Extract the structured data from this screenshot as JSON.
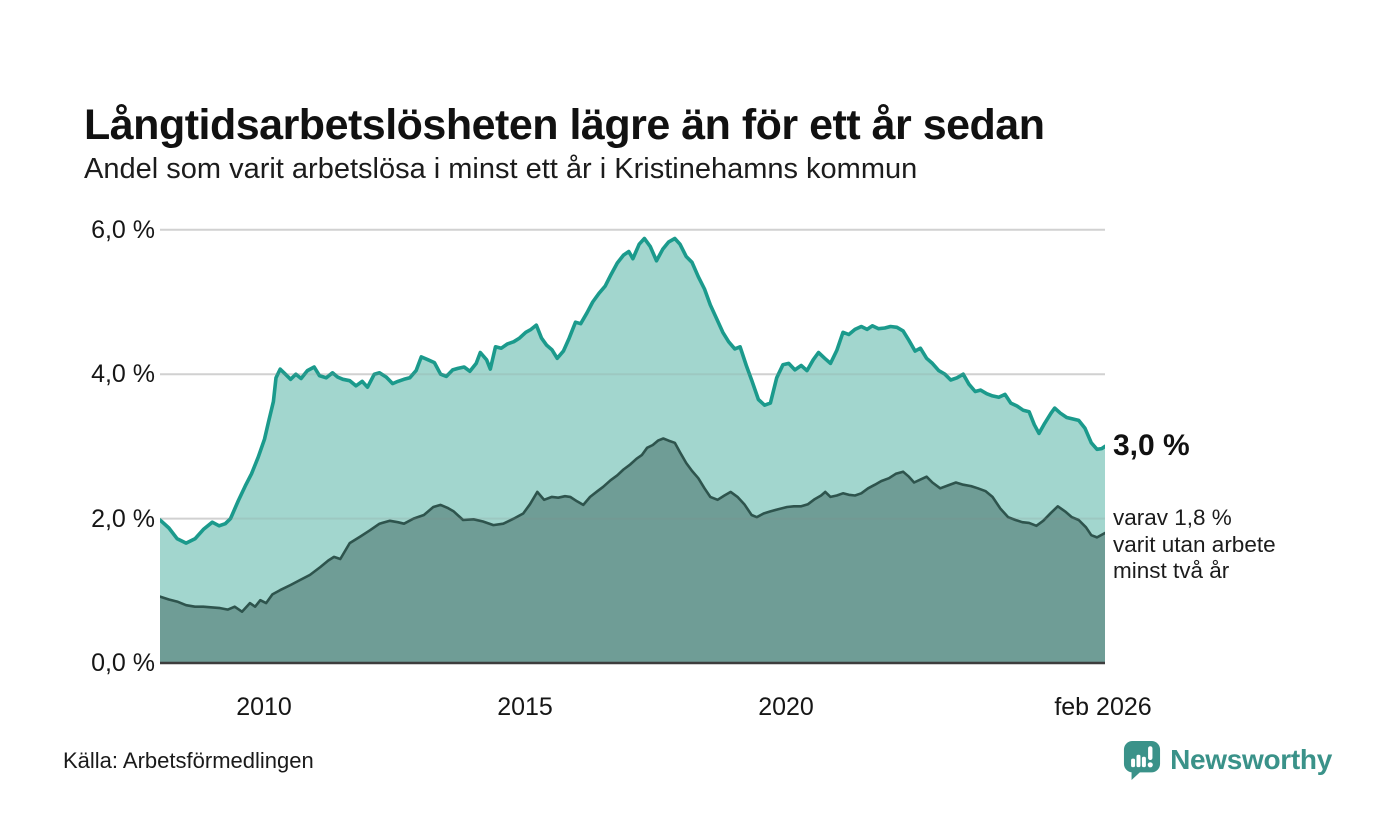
{
  "header": {
    "title": "Långtidsarbetslösheten lägre än för ett år sedan",
    "subtitle": "Andel som varit arbetslösa i minst ett år i Kristinehamns kommun"
  },
  "chart_data": {
    "type": "area",
    "title": "Långtidsarbetslösheten lägre än för ett år sedan",
    "subtitle": "Andel som varit arbetslösa i minst ett år i Kristinehamns kommun",
    "x_range": [
      2008.0,
      2026.083
    ],
    "ylim": [
      0,
      6.2
    ],
    "grid": true,
    "legend_position": "none",
    "y_tick_labels": [
      "6,0 %",
      "4,0 %",
      "2,0 %",
      "0,0 %"
    ],
    "gridline_values": [
      2,
      4,
      6
    ],
    "x_tick_labels": [
      "2010",
      "2015",
      "2020",
      "feb 2026"
    ],
    "x_tick_years": [
      2010,
      2015,
      2020,
      2026.083
    ],
    "colors": {
      "grid": "#e2e2e2",
      "baseline": "#3d3d3d",
      "background": "#ffffff"
    },
    "series": [
      {
        "name": "Arbetslösa minst ett år",
        "color": "#1b9a8c",
        "fill": "#a2d6ce",
        "stroke_width": 3.6,
        "latest_value": 3.0,
        "points": [
          [
            2008.0,
            1.98
          ],
          [
            2008.17,
            1.87
          ],
          [
            2008.33,
            1.72
          ],
          [
            2008.5,
            1.66
          ],
          [
            2008.67,
            1.72
          ],
          [
            2008.83,
            1.85
          ],
          [
            2009.0,
            1.95
          ],
          [
            2009.13,
            1.9
          ],
          [
            2009.25,
            1.93
          ],
          [
            2009.35,
            2.0
          ],
          [
            2009.5,
            2.25
          ],
          [
            2009.63,
            2.45
          ],
          [
            2009.75,
            2.62
          ],
          [
            2009.88,
            2.85
          ],
          [
            2010.0,
            3.1
          ],
          [
            2010.08,
            3.35
          ],
          [
            2010.17,
            3.62
          ],
          [
            2010.22,
            3.95
          ],
          [
            2010.3,
            4.07
          ],
          [
            2010.4,
            4.0
          ],
          [
            2010.5,
            3.93
          ],
          [
            2010.6,
            4.0
          ],
          [
            2010.7,
            3.94
          ],
          [
            2010.82,
            4.05
          ],
          [
            2010.95,
            4.1
          ],
          [
            2011.05,
            3.98
          ],
          [
            2011.18,
            3.95
          ],
          [
            2011.3,
            4.02
          ],
          [
            2011.4,
            3.96
          ],
          [
            2011.5,
            3.93
          ],
          [
            2011.63,
            3.91
          ],
          [
            2011.75,
            3.84
          ],
          [
            2011.87,
            3.9
          ],
          [
            2011.97,
            3.82
          ],
          [
            2012.1,
            4.0
          ],
          [
            2012.2,
            4.02
          ],
          [
            2012.33,
            3.96
          ],
          [
            2012.45,
            3.87
          ],
          [
            2012.55,
            3.9
          ],
          [
            2012.67,
            3.93
          ],
          [
            2012.78,
            3.95
          ],
          [
            2012.9,
            4.05
          ],
          [
            2013.0,
            4.24
          ],
          [
            2013.13,
            4.2
          ],
          [
            2013.25,
            4.16
          ],
          [
            2013.37,
            4.0
          ],
          [
            2013.48,
            3.97
          ],
          [
            2013.6,
            4.06
          ],
          [
            2013.7,
            4.08
          ],
          [
            2013.82,
            4.1
          ],
          [
            2013.93,
            4.04
          ],
          [
            2014.05,
            4.15
          ],
          [
            2014.13,
            4.3
          ],
          [
            2014.25,
            4.2
          ],
          [
            2014.32,
            4.07
          ],
          [
            2014.42,
            4.38
          ],
          [
            2014.53,
            4.36
          ],
          [
            2014.65,
            4.42
          ],
          [
            2014.77,
            4.45
          ],
          [
            2014.88,
            4.5
          ],
          [
            2015.0,
            4.58
          ],
          [
            2015.1,
            4.62
          ],
          [
            2015.2,
            4.68
          ],
          [
            2015.3,
            4.5
          ],
          [
            2015.4,
            4.4
          ],
          [
            2015.5,
            4.34
          ],
          [
            2015.6,
            4.22
          ],
          [
            2015.72,
            4.32
          ],
          [
            2015.83,
            4.5
          ],
          [
            2015.95,
            4.72
          ],
          [
            2016.05,
            4.7
          ],
          [
            2016.17,
            4.85
          ],
          [
            2016.28,
            5.0
          ],
          [
            2016.4,
            5.12
          ],
          [
            2016.52,
            5.22
          ],
          [
            2016.63,
            5.38
          ],
          [
            2016.75,
            5.54
          ],
          [
            2016.87,
            5.65
          ],
          [
            2016.97,
            5.7
          ],
          [
            2017.05,
            5.6
          ],
          [
            2017.17,
            5.8
          ],
          [
            2017.27,
            5.88
          ],
          [
            2017.38,
            5.77
          ],
          [
            2017.5,
            5.57
          ],
          [
            2017.62,
            5.73
          ],
          [
            2017.73,
            5.83
          ],
          [
            2017.85,
            5.88
          ],
          [
            2017.95,
            5.8
          ],
          [
            2018.07,
            5.63
          ],
          [
            2018.18,
            5.55
          ],
          [
            2018.3,
            5.35
          ],
          [
            2018.42,
            5.18
          ],
          [
            2018.53,
            4.96
          ],
          [
            2018.65,
            4.77
          ],
          [
            2018.77,
            4.58
          ],
          [
            2018.88,
            4.45
          ],
          [
            2019.0,
            4.35
          ],
          [
            2019.1,
            4.38
          ],
          [
            2019.22,
            4.12
          ],
          [
            2019.33,
            3.9
          ],
          [
            2019.45,
            3.65
          ],
          [
            2019.57,
            3.57
          ],
          [
            2019.68,
            3.6
          ],
          [
            2019.8,
            3.95
          ],
          [
            2019.92,
            4.13
          ],
          [
            2020.03,
            4.15
          ],
          [
            2020.15,
            4.06
          ],
          [
            2020.27,
            4.12
          ],
          [
            2020.38,
            4.05
          ],
          [
            2020.5,
            4.2
          ],
          [
            2020.6,
            4.3
          ],
          [
            2020.72,
            4.22
          ],
          [
            2020.83,
            4.15
          ],
          [
            2020.95,
            4.33
          ],
          [
            2021.07,
            4.58
          ],
          [
            2021.18,
            4.55
          ],
          [
            2021.3,
            4.62
          ],
          [
            2021.42,
            4.66
          ],
          [
            2021.53,
            4.62
          ],
          [
            2021.63,
            4.67
          ],
          [
            2021.75,
            4.63
          ],
          [
            2021.87,
            4.64
          ],
          [
            2021.98,
            4.66
          ],
          [
            2022.1,
            4.65
          ],
          [
            2022.22,
            4.6
          ],
          [
            2022.33,
            4.47
          ],
          [
            2022.45,
            4.32
          ],
          [
            2022.55,
            4.36
          ],
          [
            2022.67,
            4.22
          ],
          [
            2022.78,
            4.15
          ],
          [
            2022.9,
            4.05
          ],
          [
            2023.02,
            4.0
          ],
          [
            2023.13,
            3.92
          ],
          [
            2023.25,
            3.95
          ],
          [
            2023.37,
            4.0
          ],
          [
            2023.48,
            3.86
          ],
          [
            2023.6,
            3.76
          ],
          [
            2023.7,
            3.78
          ],
          [
            2023.82,
            3.73
          ],
          [
            2023.93,
            3.7
          ],
          [
            2024.05,
            3.68
          ],
          [
            2024.17,
            3.72
          ],
          [
            2024.28,
            3.6
          ],
          [
            2024.4,
            3.56
          ],
          [
            2024.52,
            3.5
          ],
          [
            2024.63,
            3.48
          ],
          [
            2024.73,
            3.3
          ],
          [
            2024.82,
            3.18
          ],
          [
            2024.93,
            3.32
          ],
          [
            2025.05,
            3.46
          ],
          [
            2025.12,
            3.53
          ],
          [
            2025.23,
            3.46
          ],
          [
            2025.35,
            3.4
          ],
          [
            2025.47,
            3.38
          ],
          [
            2025.58,
            3.36
          ],
          [
            2025.7,
            3.25
          ],
          [
            2025.82,
            3.05
          ],
          [
            2025.93,
            2.96
          ],
          [
            2026.02,
            2.97
          ],
          [
            2026.083,
            3.0
          ]
        ]
      },
      {
        "name": "Varav arbetslösa minst två år",
        "color": "#2e544d",
        "fill": "#6f9d96",
        "stroke_width": 2.6,
        "latest_value": 1.8,
        "points": [
          [
            2008.0,
            0.92
          ],
          [
            2008.17,
            0.88
          ],
          [
            2008.33,
            0.85
          ],
          [
            2008.5,
            0.8
          ],
          [
            2008.67,
            0.78
          ],
          [
            2008.83,
            0.78
          ],
          [
            2009.0,
            0.77
          ],
          [
            2009.15,
            0.76
          ],
          [
            2009.3,
            0.74
          ],
          [
            2009.43,
            0.78
          ],
          [
            2009.57,
            0.71
          ],
          [
            2009.72,
            0.83
          ],
          [
            2009.82,
            0.78
          ],
          [
            2009.92,
            0.87
          ],
          [
            2010.03,
            0.83
          ],
          [
            2010.15,
            0.95
          ],
          [
            2010.3,
            1.01
          ],
          [
            2010.5,
            1.08
          ],
          [
            2010.68,
            1.15
          ],
          [
            2010.87,
            1.22
          ],
          [
            2011.07,
            1.33
          ],
          [
            2011.22,
            1.42
          ],
          [
            2011.33,
            1.47
          ],
          [
            2011.45,
            1.44
          ],
          [
            2011.63,
            1.66
          ],
          [
            2011.83,
            1.75
          ],
          [
            2012.02,
            1.84
          ],
          [
            2012.2,
            1.93
          ],
          [
            2012.4,
            1.97
          ],
          [
            2012.55,
            1.95
          ],
          [
            2012.67,
            1.93
          ],
          [
            2012.85,
            2.0
          ],
          [
            2013.05,
            2.05
          ],
          [
            2013.23,
            2.16
          ],
          [
            2013.37,
            2.19
          ],
          [
            2013.5,
            2.15
          ],
          [
            2013.62,
            2.1
          ],
          [
            2013.8,
            1.98
          ],
          [
            2014.0,
            1.99
          ],
          [
            2014.18,
            1.96
          ],
          [
            2014.38,
            1.91
          ],
          [
            2014.57,
            1.93
          ],
          [
            2014.77,
            2.0
          ],
          [
            2014.95,
            2.07
          ],
          [
            2015.08,
            2.2
          ],
          [
            2015.22,
            2.37
          ],
          [
            2015.35,
            2.26
          ],
          [
            2015.5,
            2.3
          ],
          [
            2015.62,
            2.29
          ],
          [
            2015.75,
            2.31
          ],
          [
            2015.85,
            2.3
          ],
          [
            2015.98,
            2.24
          ],
          [
            2016.1,
            2.19
          ],
          [
            2016.23,
            2.3
          ],
          [
            2016.37,
            2.38
          ],
          [
            2016.48,
            2.44
          ],
          [
            2016.62,
            2.53
          ],
          [
            2016.75,
            2.6
          ],
          [
            2016.87,
            2.68
          ],
          [
            2017.0,
            2.75
          ],
          [
            2017.12,
            2.83
          ],
          [
            2017.22,
            2.88
          ],
          [
            2017.32,
            2.98
          ],
          [
            2017.43,
            3.02
          ],
          [
            2017.53,
            3.08
          ],
          [
            2017.63,
            3.11
          ],
          [
            2017.73,
            3.08
          ],
          [
            2017.85,
            3.05
          ],
          [
            2017.95,
            2.92
          ],
          [
            2018.07,
            2.77
          ],
          [
            2018.18,
            2.66
          ],
          [
            2018.3,
            2.56
          ],
          [
            2018.42,
            2.42
          ],
          [
            2018.53,
            2.3
          ],
          [
            2018.67,
            2.26
          ],
          [
            2018.8,
            2.32
          ],
          [
            2018.92,
            2.37
          ],
          [
            2019.05,
            2.3
          ],
          [
            2019.18,
            2.2
          ],
          [
            2019.32,
            2.05
          ],
          [
            2019.42,
            2.02
          ],
          [
            2019.55,
            2.07
          ],
          [
            2019.68,
            2.1
          ],
          [
            2019.83,
            2.13
          ],
          [
            2020.0,
            2.16
          ],
          [
            2020.13,
            2.17
          ],
          [
            2020.27,
            2.17
          ],
          [
            2020.4,
            2.2
          ],
          [
            2020.53,
            2.27
          ],
          [
            2020.65,
            2.32
          ],
          [
            2020.73,
            2.37
          ],
          [
            2020.83,
            2.3
          ],
          [
            2020.95,
            2.32
          ],
          [
            2021.07,
            2.35
          ],
          [
            2021.18,
            2.33
          ],
          [
            2021.3,
            2.32
          ],
          [
            2021.42,
            2.35
          ],
          [
            2021.55,
            2.42
          ],
          [
            2021.68,
            2.47
          ],
          [
            2021.8,
            2.52
          ],
          [
            2021.95,
            2.56
          ],
          [
            2022.08,
            2.62
          ],
          [
            2022.22,
            2.65
          ],
          [
            2022.33,
            2.58
          ],
          [
            2022.43,
            2.5
          ],
          [
            2022.55,
            2.54
          ],
          [
            2022.67,
            2.58
          ],
          [
            2022.78,
            2.5
          ],
          [
            2022.93,
            2.42
          ],
          [
            2023.08,
            2.46
          ],
          [
            2023.23,
            2.5
          ],
          [
            2023.37,
            2.47
          ],
          [
            2023.52,
            2.45
          ],
          [
            2023.65,
            2.42
          ],
          [
            2023.8,
            2.38
          ],
          [
            2023.93,
            2.3
          ],
          [
            2024.08,
            2.14
          ],
          [
            2024.23,
            2.02
          ],
          [
            2024.37,
            1.98
          ],
          [
            2024.5,
            1.95
          ],
          [
            2024.63,
            1.94
          ],
          [
            2024.77,
            1.9
          ],
          [
            2024.9,
            1.97
          ],
          [
            2025.05,
            2.08
          ],
          [
            2025.18,
            2.17
          ],
          [
            2025.32,
            2.1
          ],
          [
            2025.45,
            2.02
          ],
          [
            2025.58,
            1.98
          ],
          [
            2025.72,
            1.88
          ],
          [
            2025.82,
            1.77
          ],
          [
            2025.93,
            1.74
          ],
          [
            2026.083,
            1.8
          ]
        ]
      }
    ]
  },
  "annotations": {
    "latest_value": "3,0 %",
    "secondary_lines": [
      "varav 1,8 %",
      "varit utan arbete",
      "minst två år"
    ]
  },
  "footer": {
    "source": "Källa: Arbetsförmedlingen",
    "brand_name": "Newsworthy",
    "brand_color": "#3a9289"
  }
}
